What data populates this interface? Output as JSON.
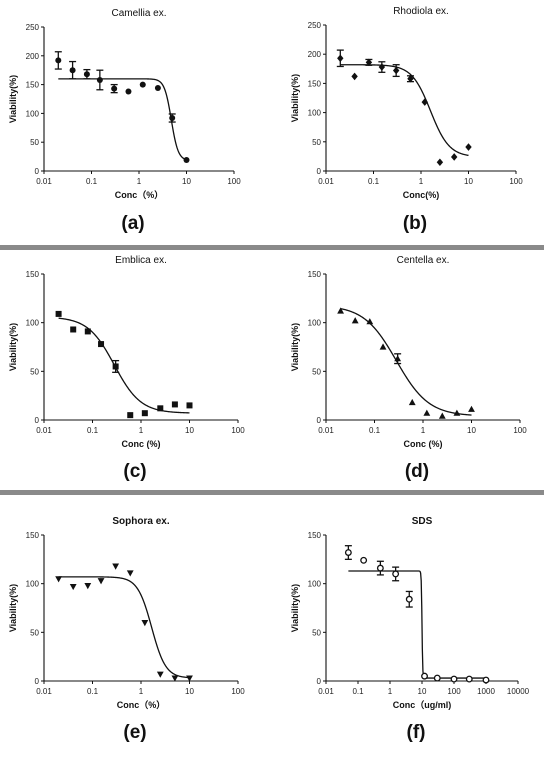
{
  "chart_data": [
    {
      "type": "scatter",
      "panel_label": "(a)",
      "title": "Camellia ex.",
      "xlabel": "Conc（%）",
      "ylabel": "Viability(%)",
      "xscale": "log",
      "xlim": [
        0.01,
        100
      ],
      "ylim": [
        0,
        250
      ],
      "x_ticks": [
        "0.01",
        "0.1",
        "1",
        "10",
        "100"
      ],
      "y_ticks": [
        "0",
        "50",
        "100",
        "150",
        "200",
        "250"
      ],
      "grid": false,
      "marker": "circle",
      "points": [
        {
          "x": 0.02,
          "y": 192,
          "err": 15
        },
        {
          "x": 0.04,
          "y": 175,
          "err": 15
        },
        {
          "x": 0.08,
          "y": 168,
          "err": 8
        },
        {
          "x": 0.15,
          "y": 158,
          "err": 17
        },
        {
          "x": 0.3,
          "y": 143,
          "err": 7
        },
        {
          "x": 0.6,
          "y": 138,
          "err": 0
        },
        {
          "x": 1.2,
          "y": 150,
          "err": 0
        },
        {
          "x": 2.5,
          "y": 144,
          "err": 0
        },
        {
          "x": 5,
          "y": 92,
          "err": 7
        },
        {
          "x": 10,
          "y": 19,
          "err": 0
        }
      ],
      "fit": {
        "top": 160,
        "bottom": 18,
        "log_ic50": 0.68,
        "hill": -6
      }
    },
    {
      "type": "scatter",
      "panel_label": "(b)",
      "title": "Rhodiola ex.",
      "xlabel": "Conc(%)",
      "ylabel": "Viability(%)",
      "xscale": "log",
      "xlim": [
        0.01,
        100
      ],
      "ylim": [
        0,
        250
      ],
      "x_ticks": [
        "0.01",
        "0.1",
        "1",
        "10",
        "100"
      ],
      "y_ticks": [
        "0",
        "50",
        "100",
        "150",
        "200",
        "250"
      ],
      "grid": false,
      "marker": "diamond",
      "points": [
        {
          "x": 0.02,
          "y": 193,
          "err": 14
        },
        {
          "x": 0.04,
          "y": 162,
          "err": 0
        },
        {
          "x": 0.08,
          "y": 186,
          "err": 5
        },
        {
          "x": 0.15,
          "y": 178,
          "err": 9
        },
        {
          "x": 0.3,
          "y": 172,
          "err": 10
        },
        {
          "x": 0.6,
          "y": 158,
          "err": 5
        },
        {
          "x": 1.2,
          "y": 118,
          "err": 0
        },
        {
          "x": 2.5,
          "y": 15,
          "err": 0
        },
        {
          "x": 5,
          "y": 24,
          "err": 0
        },
        {
          "x": 10,
          "y": 41,
          "err": 0
        }
      ],
      "fit": {
        "top": 182,
        "bottom": 24,
        "log_ic50": 0.2,
        "hill": -2.2
      }
    },
    {
      "type": "scatter",
      "panel_label": "(c)",
      "title": "Emblica ex.",
      "xlabel": "Conc (%)",
      "ylabel": "Viability(%)",
      "xscale": "log",
      "xlim": [
        0.01,
        100
      ],
      "ylim": [
        0,
        150
      ],
      "x_ticks": [
        "0.01",
        "0.1",
        "1",
        "10",
        "100"
      ],
      "y_ticks": [
        "0",
        "50",
        "100",
        "150"
      ],
      "grid": false,
      "marker": "square",
      "points": [
        {
          "x": 0.02,
          "y": 109,
          "err": 0
        },
        {
          "x": 0.04,
          "y": 93,
          "err": 0
        },
        {
          "x": 0.08,
          "y": 91,
          "err": 0
        },
        {
          "x": 0.15,
          "y": 78,
          "err": 0
        },
        {
          "x": 0.3,
          "y": 55,
          "err": 6
        },
        {
          "x": 0.6,
          "y": 5,
          "err": 0
        },
        {
          "x": 1.2,
          "y": 7,
          "err": 0
        },
        {
          "x": 2.5,
          "y": 12,
          "err": 0
        },
        {
          "x": 5,
          "y": 16,
          "err": 0
        },
        {
          "x": 10,
          "y": 15,
          "err": 0
        }
      ],
      "fit": {
        "top": 106,
        "bottom": 7,
        "log_ic50": -0.55,
        "hill": -1.6
      }
    },
    {
      "type": "scatter",
      "panel_label": "(d)",
      "title": "Centella ex.",
      "xlabel": "Conc (%)",
      "ylabel": "Viability(%)",
      "xscale": "log",
      "xlim": [
        0.01,
        100
      ],
      "ylim": [
        0,
        150
      ],
      "x_ticks": [
        "0.01",
        "0.1",
        "1",
        "10",
        "100"
      ],
      "y_ticks": [
        "0",
        "50",
        "100",
        "150"
      ],
      "grid": false,
      "marker": "triangle-up",
      "points": [
        {
          "x": 0.02,
          "y": 112,
          "err": 0
        },
        {
          "x": 0.04,
          "y": 102,
          "err": 0
        },
        {
          "x": 0.08,
          "y": 101,
          "err": 0
        },
        {
          "x": 0.15,
          "y": 75,
          "err": 0
        },
        {
          "x": 0.3,
          "y": 63,
          "err": 5
        },
        {
          "x": 0.6,
          "y": 18,
          "err": 0
        },
        {
          "x": 1.2,
          "y": 7,
          "err": 0
        },
        {
          "x": 2.5,
          "y": 4,
          "err": 0
        },
        {
          "x": 5,
          "y": 7,
          "err": 0
        },
        {
          "x": 10,
          "y": 11,
          "err": 0
        }
      ],
      "fit": {
        "top": 118,
        "bottom": 4,
        "log_ic50": -0.55,
        "hill": -1.3
      }
    },
    {
      "type": "scatter",
      "panel_label": "(e)",
      "title": "Sophora ex.",
      "xlabel": "Conc（%）",
      "ylabel": "Viability(%)",
      "xscale": "log",
      "xlim": [
        0.01,
        100
      ],
      "ylim": [
        0,
        150
      ],
      "x_ticks": [
        "0.01",
        "0.1",
        "1",
        "10",
        "100"
      ],
      "y_ticks": [
        "0",
        "50",
        "100",
        "150"
      ],
      "grid": false,
      "marker": "triangle-down",
      "points": [
        {
          "x": 0.02,
          "y": 105,
          "err": 0
        },
        {
          "x": 0.04,
          "y": 97,
          "err": 0
        },
        {
          "x": 0.08,
          "y": 98,
          "err": 0
        },
        {
          "x": 0.15,
          "y": 103,
          "err": 0
        },
        {
          "x": 0.3,
          "y": 118,
          "err": 0
        },
        {
          "x": 0.6,
          "y": 111,
          "err": 0
        },
        {
          "x": 1.2,
          "y": 60,
          "err": 0
        },
        {
          "x": 2.5,
          "y": 7,
          "err": 0
        },
        {
          "x": 5,
          "y": 3,
          "err": 0
        },
        {
          "x": 10,
          "y": 3,
          "err": 0
        }
      ],
      "fit": {
        "top": 107,
        "bottom": 3,
        "log_ic50": 0.22,
        "hill": -3
      }
    },
    {
      "type": "scatter",
      "panel_label": "(f)",
      "title": "SDS",
      "xlabel": "Conc（ug/ml)",
      "ylabel": "Viability(%)",
      "xscale": "log",
      "xlim": [
        0.01,
        10000
      ],
      "ylim": [
        0,
        150
      ],
      "x_ticks": [
        "0.01",
        "0.1",
        "1",
        "10",
        "100",
        "1000",
        "10000"
      ],
      "y_ticks": [
        "0",
        "50",
        "100",
        "150"
      ],
      "grid": false,
      "marker": "open-circle",
      "points": [
        {
          "x": 0.05,
          "y": 132,
          "err": 7
        },
        {
          "x": 0.15,
          "y": 124,
          "err": 0
        },
        {
          "x": 0.5,
          "y": 116,
          "err": 7
        },
        {
          "x": 1.5,
          "y": 110,
          "err": 7
        },
        {
          "x": 4,
          "y": 84,
          "err": 8
        },
        {
          "x": 12,
          "y": 5,
          "err": 0
        },
        {
          "x": 30,
          "y": 3,
          "err": 0
        },
        {
          "x": 100,
          "y": 2,
          "err": 0
        },
        {
          "x": 300,
          "y": 2,
          "err": 0
        },
        {
          "x": 1000,
          "y": 1,
          "err": 0
        }
      ],
      "fit": {
        "top": 113,
        "bottom": 3,
        "log_ic50": 1.0,
        "hill": -40
      }
    }
  ]
}
